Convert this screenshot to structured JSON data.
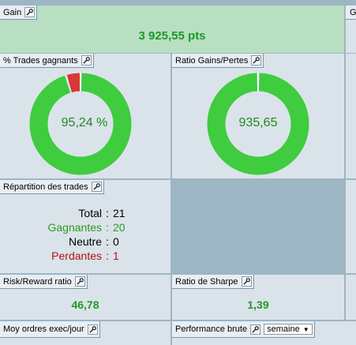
{
  "gain": {
    "title": "Gain",
    "value": "3 925,55 pts"
  },
  "trades_gagnants": {
    "title": "% Trades gagnants",
    "label": "95,24 %",
    "win_fraction": 0.9524
  },
  "ratio_gains_pertes": {
    "title": "Ratio Gains/Pertes",
    "label": "935,65",
    "win_fraction": 0.999
  },
  "repartition": {
    "title": "Répartition des trades",
    "rows": [
      {
        "key": "Total",
        "value": "21"
      },
      {
        "key": "Gagnantes",
        "value": "20"
      },
      {
        "key": "Neutre",
        "value": "0"
      },
      {
        "key": "Perdantes",
        "value": "1"
      }
    ]
  },
  "risk_reward": {
    "title": "Risk/Reward ratio",
    "value": "46,78"
  },
  "sharpe": {
    "title": "Ratio de Sharpe",
    "value": "1,39"
  },
  "moy_ordres": {
    "title": "Moy ordres exec/jour"
  },
  "perf_brute": {
    "title": "Performance brute",
    "period": "semaine"
  },
  "partial_tab": {
    "title": "G"
  },
  "colors": {
    "win": "#3fcc3f",
    "loss": "#d93838"
  }
}
